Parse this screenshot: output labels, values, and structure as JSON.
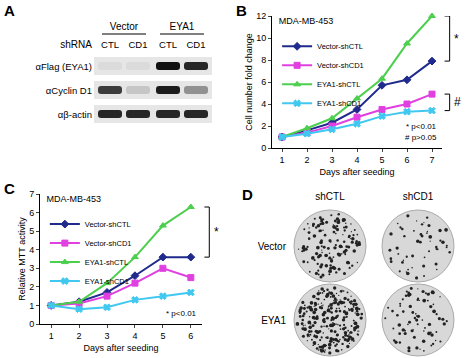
{
  "chart_data": [
    {
      "type": "line",
      "title": "MDA-MB-453",
      "x_label": "Days after seeding",
      "y_label": "Cell number fold change",
      "x": [
        1,
        2,
        3,
        4,
        5,
        6,
        7
      ],
      "xlim": [
        0.6,
        7.4
      ],
      "xticks": [
        1,
        2,
        3,
        4,
        5,
        6,
        7
      ],
      "ylim": [
        0,
        12
      ],
      "yticks": [
        0,
        2,
        4,
        6,
        8,
        10,
        12
      ],
      "grid": false,
      "legend": "upper left",
      "series": [
        {
          "name": "Vector-shCTL",
          "color": "#1f2a8c",
          "marker": "diamond",
          "line_style": "solid",
          "values": [
            1,
            1.6,
            2.3,
            3.5,
            5.7,
            6.2,
            7.9
          ]
        },
        {
          "name": "Vector-shCD1",
          "color": "#e040e0",
          "marker": "square",
          "line_style": "solid",
          "values": [
            1,
            1.4,
            2.0,
            2.8,
            3.5,
            4.0,
            4.9
          ]
        },
        {
          "name": "EYA1-shCTL",
          "color": "#4ccf4c",
          "marker": "triangle-up",
          "line_style": "solid",
          "values": [
            1,
            1.8,
            2.7,
            4.5,
            6.3,
            9.5,
            12.0
          ]
        },
        {
          "name": "EYA1-shCD1",
          "color": "#40c8f0",
          "marker": "x",
          "line_style": "solid",
          "values": [
            1,
            1.3,
            1.7,
            2.2,
            2.9,
            3.3,
            3.4
          ]
        }
      ],
      "annotations": [
        "B",
        "*",
        "#",
        "* p<0.01",
        "# p>0.05"
      ]
    },
    {
      "type": "line",
      "title": "MDA-MB-453",
      "x_label": "Days after seeding",
      "y_label": "Relative MTT activity",
      "x": [
        1,
        2,
        3,
        4,
        5,
        6
      ],
      "xlim": [
        0.6,
        6.4
      ],
      "xticks": [
        1,
        2,
        3,
        4,
        5,
        6
      ],
      "ylim": [
        0,
        7
      ],
      "yticks": [
        0,
        1,
        2,
        3,
        4,
        5,
        6,
        7
      ],
      "grid": false,
      "legend": "upper left",
      "series": [
        {
          "name": "Vector-shCTL",
          "color": "#1f2a8c",
          "marker": "diamond",
          "line_style": "solid",
          "values": [
            1,
            1.2,
            1.7,
            2.6,
            3.6,
            3.6
          ]
        },
        {
          "name": "Vector-shCD1",
          "color": "#e040e0",
          "marker": "square",
          "line_style": "solid",
          "values": [
            1,
            1.1,
            1.5,
            2.2,
            3.0,
            2.5
          ]
        },
        {
          "name": "EYA1-shCTL",
          "color": "#4ccf4c",
          "marker": "triangle-up",
          "line_style": "solid",
          "values": [
            1,
            1.2,
            2.2,
            3.6,
            5.3,
            6.3
          ]
        },
        {
          "name": "EYA1-shCD1",
          "color": "#40c8f0",
          "marker": "x",
          "line_style": "solid",
          "values": [
            1,
            0.8,
            0.9,
            1.3,
            1.5,
            1.7
          ]
        }
      ],
      "annotations": [
        "C",
        "*",
        "* p<0.01"
      ]
    }
  ],
  "panel_a": {
    "label": "A",
    "groups": [
      "Vector",
      "EYA1"
    ],
    "lane_header": "shRNA",
    "lanes": [
      "CTL",
      "CD1",
      "CTL",
      "CD1"
    ],
    "rows": [
      {
        "label": "αFlag (EYA1)",
        "bands": [
          0.05,
          0.05,
          1.0,
          0.9
        ]
      },
      {
        "label": "αCyclin D1",
        "bands": [
          0.8,
          0.15,
          0.95,
          0.4
        ]
      },
      {
        "label": "αβ-actin",
        "bands": [
          0.9,
          0.9,
          0.9,
          0.9
        ]
      }
    ]
  },
  "panel_d": {
    "label": "D",
    "columns": [
      "shCTL",
      "shCD1"
    ],
    "rows": [
      {
        "label": "Vector",
        "density": [
          0.55,
          0.2
        ]
      },
      {
        "label": "EYA1",
        "density": [
          1.0,
          0.3
        ]
      }
    ]
  }
}
